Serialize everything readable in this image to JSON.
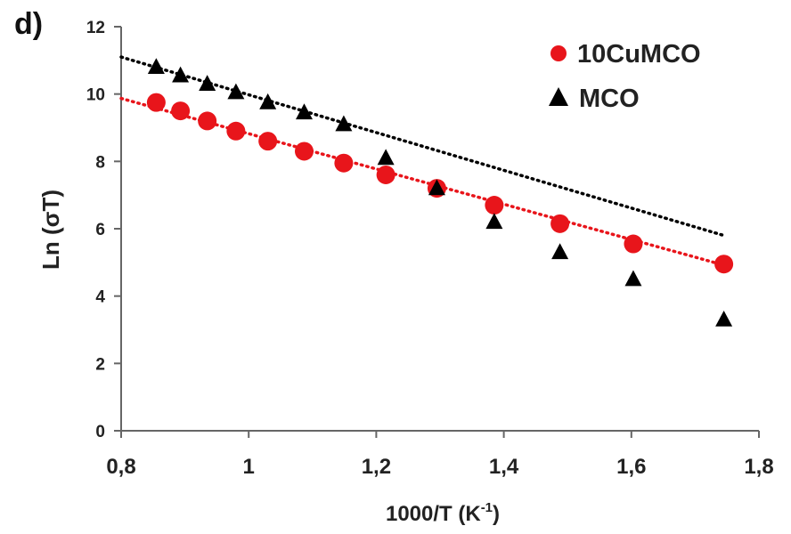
{
  "panel_label": "d)",
  "chart_data": {
    "type": "scatter",
    "xlabel": "1000/T (K",
    "xlabel_sup": "-1",
    "xlabel_close": ")",
    "ylabel": "Ln (σT)",
    "xlim": [
      0.8,
      1.8
    ],
    "ylim": [
      0,
      12
    ],
    "x_ticks": [
      0.8,
      1.0,
      1.2,
      1.4,
      1.6,
      1.8
    ],
    "x_tick_labels": [
      "0,8",
      "1",
      "1,2",
      "1,4",
      "1,6",
      "1,8"
    ],
    "y_ticks": [
      0,
      2,
      4,
      6,
      8,
      10,
      12
    ],
    "y_tick_labels": [
      "0",
      "2",
      "4",
      "6",
      "8",
      "10",
      "12"
    ],
    "grid": false,
    "legend_position": "top-right",
    "series": [
      {
        "name": "10CuMCO",
        "marker": "circle",
        "color": "#e8151b",
        "x": [
          0.855,
          0.893,
          0.935,
          0.98,
          1.03,
          1.087,
          1.149,
          1.215,
          1.295,
          1.385,
          1.488,
          1.603,
          1.745
        ],
        "y": [
          9.75,
          9.5,
          9.2,
          8.9,
          8.6,
          8.3,
          7.95,
          7.6,
          7.2,
          6.7,
          6.15,
          5.55,
          4.95
        ],
        "trendline": {
          "x": [
            0.8,
            1.745
          ],
          "y": [
            9.87,
            4.92
          ],
          "color": "#e8151b",
          "style": "dotted"
        }
      },
      {
        "name": "MCO",
        "marker": "triangle",
        "color": "#000000",
        "x": [
          0.855,
          0.893,
          0.935,
          0.98,
          1.03,
          1.087,
          1.149,
          1.215,
          1.295,
          1.385,
          1.488,
          1.603,
          1.745
        ],
        "y": [
          10.8,
          10.55,
          10.3,
          10.05,
          9.75,
          9.45,
          9.1,
          8.1,
          7.2,
          6.2,
          5.3,
          4.5,
          3.3
        ],
        "trendline": {
          "x": [
            0.8,
            1.745
          ],
          "y": [
            11.1,
            5.8
          ],
          "color": "#000000",
          "style": "dotted"
        }
      }
    ]
  }
}
